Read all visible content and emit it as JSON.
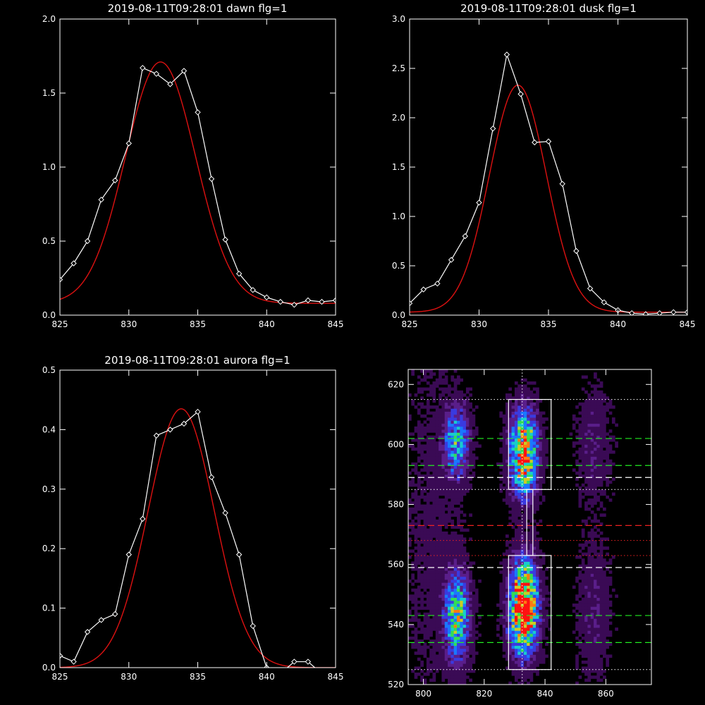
{
  "colors": {
    "background": "#000000",
    "axes": "#ffffff",
    "data_line": "#ffffff",
    "fit_line": "#dd1111",
    "dash_green": "#22ee22",
    "dash_red": "#ee2222",
    "dash_white": "#ffffff"
  },
  "chart_data": [
    {
      "id": "dawn",
      "type": "line",
      "title": "2019-08-11T09:28:01 dawn flg=1",
      "xlim": [
        825,
        845
      ],
      "ylim": [
        0.0,
        2.0
      ],
      "xticks": [
        825,
        830,
        835,
        840,
        845
      ],
      "xtick_labels": [
        "825",
        "830",
        "835",
        "840",
        "845"
      ],
      "yticks": [
        0,
        0.5,
        1.0,
        1.5,
        2.0
      ],
      "ytick_labels": [
        "0.0",
        "0.5",
        "1.0",
        "1.5",
        "2.0"
      ],
      "series": [
        {
          "style": "line-diamond",
          "x": [
            825,
            826,
            827,
            828,
            829,
            830,
            831,
            832,
            833,
            834,
            835,
            836,
            837,
            838,
            839,
            840,
            841,
            842,
            843,
            844,
            845
          ],
          "y": [
            0.24,
            0.35,
            0.5,
            0.78,
            0.91,
            1.16,
            1.67,
            1.63,
            1.56,
            1.65,
            1.37,
            0.92,
            0.51,
            0.28,
            0.17,
            0.12,
            0.09,
            0.07,
            0.1,
            0.09,
            0.1
          ]
        },
        {
          "style": "fit",
          "amplitude": 1.63,
          "center": 832.3,
          "sigma": 2.55,
          "offset": 0.08
        }
      ]
    },
    {
      "id": "dusk",
      "type": "line",
      "title": "2019-08-11T09:28:01 dusk flg=1",
      "xlim": [
        825,
        845
      ],
      "ylim": [
        0.0,
        3.0
      ],
      "xticks": [
        825,
        830,
        835,
        840,
        845
      ],
      "xtick_labels": [
        "825",
        "830",
        "835",
        "840",
        "845"
      ],
      "yticks": [
        0,
        0.5,
        1.0,
        1.5,
        2.0,
        2.5,
        3.0
      ],
      "ytick_labels": [
        "0.0",
        "0.5",
        "1.0",
        "1.5",
        "2.0",
        "2.5",
        "3.0"
      ],
      "series": [
        {
          "style": "line-diamond",
          "x": [
            825,
            826,
            827,
            828,
            829,
            830,
            831,
            832,
            833,
            834,
            835,
            836,
            837,
            838,
            839,
            840,
            841,
            842,
            843,
            844,
            845
          ],
          "y": [
            0.12,
            0.26,
            0.32,
            0.56,
            0.8,
            1.14,
            1.89,
            2.64,
            2.24,
            1.75,
            1.76,
            1.33,
            0.65,
            0.27,
            0.13,
            0.05,
            0.02,
            0.01,
            0.02,
            0.03,
            0.03
          ]
        },
        {
          "style": "fit",
          "amplitude": 2.3,
          "center": 832.8,
          "sigma": 2.05,
          "offset": 0.03
        }
      ]
    },
    {
      "id": "aurora",
      "type": "line",
      "title": "2019-08-11T09:28:01 aurora flg=1",
      "xlim": [
        825,
        845
      ],
      "ylim": [
        0.0,
        0.5
      ],
      "xticks": [
        825,
        830,
        835,
        840,
        845
      ],
      "xtick_labels": [
        "825",
        "830",
        "835",
        "840",
        "845"
      ],
      "yticks": [
        0,
        0.1,
        0.2,
        0.3,
        0.4,
        0.5
      ],
      "ytick_labels": [
        "0.0",
        "0.1",
        "0.2",
        "0.3",
        "0.4",
        "0.5"
      ],
      "series": [
        {
          "style": "line-diamond",
          "x": [
            825,
            826,
            827,
            828,
            829,
            830,
            831,
            832,
            833,
            834,
            835,
            836,
            837,
            838,
            839,
            840,
            841,
            842,
            843,
            844,
            845
          ],
          "y": [
            0.02,
            0.01,
            0.06,
            0.08,
            0.09,
            0.19,
            0.25,
            0.39,
            0.4,
            0.41,
            0.43,
            0.32,
            0.26,
            0.19,
            0.07,
            0.0,
            -0.01,
            0.01,
            0.01,
            -0.01,
            -0.01
          ]
        },
        {
          "style": "fit",
          "amplitude": 0.435,
          "center": 833.8,
          "sigma": 2.4,
          "offset": 0.0
        }
      ]
    },
    {
      "id": "image",
      "type": "heatmap",
      "title": "",
      "xlim": [
        795,
        875
      ],
      "ylim": [
        520,
        625
      ],
      "xticks": [
        800,
        820,
        840,
        860
      ],
      "xtick_labels": [
        "800",
        "820",
        "840",
        "860"
      ],
      "yticks": [
        520,
        540,
        560,
        580,
        600,
        620
      ],
      "ytick_labels": [
        "520",
        "540",
        "560",
        "580",
        "600",
        "620"
      ],
      "colormap": [
        "#000000",
        "#3a0a55",
        "#5a1e8a",
        "#3a3ae0",
        "#1a78ff",
        "#19cccc",
        "#33dd55",
        "#cccc22",
        "#ff7a11",
        "#ff1111"
      ],
      "blobs": [
        {
          "x": 811,
          "y": 543,
          "sx": 2.8,
          "sy": 10,
          "amp": 0.62
        },
        {
          "x": 811,
          "y": 601,
          "sx": 2.8,
          "sy": 8,
          "amp": 0.5
        },
        {
          "x": 833,
          "y": 543,
          "sx": 3.0,
          "sy": 9,
          "amp": 0.95
        },
        {
          "x": 833,
          "y": 601,
          "sx": 3.0,
          "sy": 8,
          "amp": 0.72
        },
        {
          "x": 833,
          "y": 553,
          "sx": 3.0,
          "sy": 9,
          "amp": 0.4
        },
        {
          "x": 833,
          "y": 590,
          "sx": 3.0,
          "sy": 7,
          "amp": 0.4
        },
        {
          "x": 856,
          "y": 545,
          "sx": 3.5,
          "sy": 14,
          "amp": 0.14
        },
        {
          "x": 856,
          "y": 600,
          "sx": 3.5,
          "sy": 12,
          "amp": 0.14
        },
        {
          "x": 803,
          "y": 572,
          "sx": 6,
          "sy": 40,
          "amp": 0.07
        }
      ],
      "boxes": [
        {
          "x0": 828,
          "x1": 842,
          "y0": 585,
          "y1": 615
        },
        {
          "x0": 828,
          "x1": 842,
          "y0": 525,
          "y1": 563
        },
        {
          "x0": 834,
          "x1": 836,
          "y0": 563,
          "y1": 585
        }
      ],
      "hlines": [
        {
          "y": 615,
          "style": "dotted",
          "color": "white"
        },
        {
          "y": 602,
          "style": "dashed",
          "color": "green"
        },
        {
          "y": 593,
          "style": "dashed",
          "color": "green"
        },
        {
          "y": 589,
          "style": "dashed",
          "color": "white"
        },
        {
          "y": 585,
          "style": "dotted",
          "color": "white"
        },
        {
          "y": 573,
          "style": "dashed",
          "color": "red"
        },
        {
          "y": 568,
          "style": "dotted",
          "color": "red"
        },
        {
          "y": 563,
          "style": "dotted",
          "color": "red"
        },
        {
          "y": 559,
          "style": "dashed",
          "color": "white"
        },
        {
          "y": 543,
          "style": "dashed",
          "color": "green"
        },
        {
          "y": 534,
          "style": "dashed",
          "color": "green"
        },
        {
          "y": 525,
          "style": "dotted",
          "color": "white"
        }
      ],
      "vlines": [
        {
          "x": 832.5,
          "style": "dotted",
          "color": "white"
        }
      ]
    }
  ]
}
